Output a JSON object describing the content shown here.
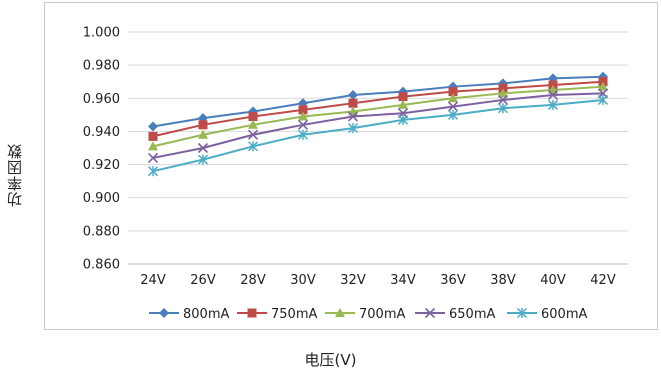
{
  "chart_data": {
    "type": "line",
    "title": "",
    "xlabel": "电压(V)",
    "ylabel": "功率因数",
    "categories": [
      "24V",
      "26V",
      "28V",
      "30V",
      "32V",
      "34V",
      "36V",
      "38V",
      "40V",
      "42V"
    ],
    "ylim": [
      0.86,
      1.0
    ],
    "yticks": [
      "0.860",
      "0.880",
      "0.900",
      "0.920",
      "0.940",
      "0.960",
      "0.980",
      "1.000"
    ],
    "grid": true,
    "legend": "bottom",
    "series": [
      {
        "name": "800mA",
        "color": "#4a7ebb",
        "marker": "diamond",
        "values": [
          0.943,
          0.948,
          0.952,
          0.957,
          0.962,
          0.964,
          0.967,
          0.969,
          0.972,
          0.973
        ]
      },
      {
        "name": "750mA",
        "color": "#be4b48",
        "marker": "square",
        "values": [
          0.937,
          0.944,
          0.949,
          0.953,
          0.957,
          0.961,
          0.964,
          0.966,
          0.968,
          0.97
        ]
      },
      {
        "name": "700mA",
        "color": "#98b954",
        "marker": "triangle",
        "values": [
          0.931,
          0.938,
          0.944,
          0.949,
          0.952,
          0.956,
          0.96,
          0.963,
          0.965,
          0.967
        ]
      },
      {
        "name": "650mA",
        "color": "#7d60a0",
        "marker": "x",
        "values": [
          0.924,
          0.93,
          0.938,
          0.944,
          0.949,
          0.951,
          0.955,
          0.959,
          0.962,
          0.963
        ]
      },
      {
        "name": "600mA",
        "color": "#4bacc6",
        "marker": "star",
        "values": [
          0.916,
          0.923,
          0.931,
          0.938,
          0.942,
          0.947,
          0.95,
          0.954,
          0.956,
          0.959
        ]
      }
    ]
  }
}
